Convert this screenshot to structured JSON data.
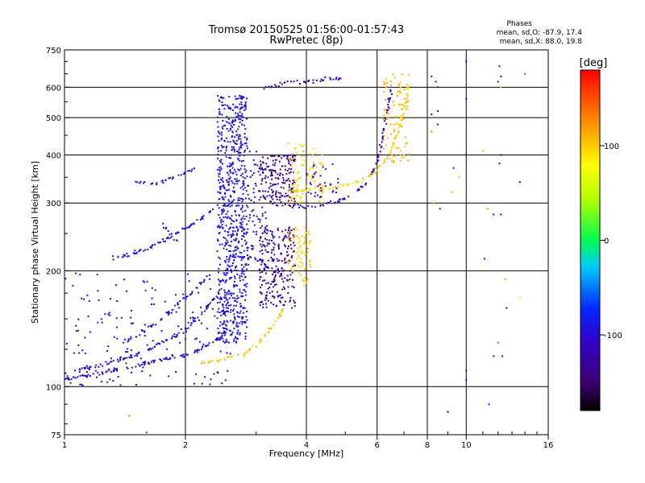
{
  "title": "Tromsø 20150525 01:56:00-01:57:43",
  "subtitle": "RwPretec (8p)",
  "stats": {
    "heading": "Phases",
    "line_o": "mean, sd,O: -87.9, 17.4",
    "line_x": "mean, sd,X:  88.0, 19.8"
  },
  "colorbar": {
    "label": "[deg]",
    "range": [
      -180,
      180
    ],
    "ticks": [
      100,
      0,
      -100
    ],
    "tick_labels": [
      "100",
      "0",
      "-100"
    ],
    "scale": "rainbow"
  },
  "chart_data": {
    "type": "scatter",
    "title": "Tromsø 20150525 01:56:00-01:57:43",
    "subtitle": "RwPretec (8p)",
    "xlabel": "Frequency [MHz]",
    "ylabel": "Stationary phase Virtual Height [km]",
    "xscale": "log",
    "yscale": "log",
    "xlim": [
      1,
      16
    ],
    "ylim": [
      75,
      750
    ],
    "xticks": [
      1,
      2,
      4,
      6,
      8,
      10,
      16
    ],
    "xtick_labels": [
      "1",
      "2",
      "4",
      "6",
      "8",
      "10",
      "16"
    ],
    "yticks": [
      75,
      100,
      200,
      300,
      400,
      500,
      600,
      750
    ],
    "ytick_labels": [
      "75",
      "100",
      "200",
      "300",
      "400",
      "500",
      "600",
      "750"
    ],
    "grid": true,
    "color_variable": "phase [deg]",
    "traces": [
      {
        "phase_mean": -105,
        "phase_sd": 12,
        "density": 5,
        "points": [
          [
            1.0,
            104
          ],
          [
            1.05,
            106
          ],
          [
            1.1,
            107
          ],
          [
            1.2,
            108
          ],
          [
            1.3,
            110
          ],
          [
            1.45,
            112
          ],
          [
            1.6,
            115
          ],
          [
            1.8,
            118
          ],
          [
            2.0,
            121
          ],
          [
            2.2,
            126
          ],
          [
            2.4,
            133
          ],
          [
            2.55,
            140
          ]
        ]
      },
      {
        "phase_mean": -102,
        "phase_sd": 12,
        "density": 5,
        "points": [
          [
            1.05,
            110
          ],
          [
            1.2,
            113
          ],
          [
            1.4,
            118
          ],
          [
            1.6,
            124
          ],
          [
            1.8,
            132
          ],
          [
            2.0,
            140
          ],
          [
            2.15,
            152
          ],
          [
            2.3,
            165
          ],
          [
            2.45,
            178
          ]
        ]
      },
      {
        "phase_mean": -100,
        "phase_sd": 14,
        "density": 4,
        "points": [
          [
            1.4,
            130
          ],
          [
            1.55,
            138
          ],
          [
            1.7,
            147
          ],
          [
            1.85,
            158
          ],
          [
            2.0,
            170
          ],
          [
            2.15,
            182
          ],
          [
            2.3,
            195
          ]
        ]
      },
      {
        "phase_mean": -95,
        "phase_sd": 12,
        "density": 5,
        "points": [
          [
            1.3,
            215
          ],
          [
            1.45,
            220
          ],
          [
            1.6,
            228
          ],
          [
            1.75,
            238
          ],
          [
            1.9,
            250
          ],
          [
            2.05,
            262
          ],
          [
            2.2,
            275
          ],
          [
            2.35,
            290
          ]
        ]
      },
      {
        "phase_mean": -98,
        "phase_sd": 10,
        "density": 4,
        "points": [
          [
            1.5,
            340
          ],
          [
            1.6,
            335
          ],
          [
            1.7,
            338
          ],
          [
            1.8,
            345
          ],
          [
            1.9,
            352
          ],
          [
            2.0,
            360
          ],
          [
            2.1,
            368
          ]
        ]
      },
      {
        "phase_mean": -92,
        "phase_sd": 14,
        "density": 3,
        "points": [
          [
            1.75,
            270
          ],
          [
            1.8,
            255
          ],
          [
            1.85,
            245
          ],
          [
            1.9,
            240
          ]
        ]
      },
      {
        "phase_mean": -110,
        "phase_sd": 14,
        "density": 4,
        "points": [
          [
            3.3,
            300
          ],
          [
            3.5,
            296
          ],
          [
            3.8,
            294
          ],
          [
            4.1,
            294
          ],
          [
            4.4,
            297
          ],
          [
            4.8,
            303
          ],
          [
            5.2,
            315
          ],
          [
            5.6,
            335
          ],
          [
            5.9,
            365
          ],
          [
            6.1,
            410
          ],
          [
            6.25,
            470
          ],
          [
            6.4,
            540
          ],
          [
            6.55,
            600
          ]
        ]
      },
      {
        "phase_mean": -118,
        "phase_sd": 10,
        "density": 4,
        "points": [
          [
            3.1,
            590
          ],
          [
            3.4,
            610
          ],
          [
            3.7,
            620
          ],
          [
            4.0,
            618
          ],
          [
            4.3,
            625
          ],
          [
            4.6,
            632
          ],
          [
            5.0,
            636
          ]
        ]
      },
      {
        "phase_mean": 95,
        "phase_sd": 15,
        "density": 4,
        "points": [
          [
            3.6,
            325
          ],
          [
            3.9,
            322
          ],
          [
            4.2,
            325
          ],
          [
            4.6,
            328
          ],
          [
            5.0,
            333
          ],
          [
            5.5,
            343
          ],
          [
            5.9,
            360
          ],
          [
            6.3,
            390
          ],
          [
            6.6,
            430
          ],
          [
            6.85,
            480
          ],
          [
            7.05,
            540
          ],
          [
            7.2,
            610
          ]
        ]
      },
      {
        "phase_mean": 105,
        "phase_sd": 15,
        "density": 4,
        "points": [
          [
            2.2,
            115
          ],
          [
            2.5,
            118
          ],
          [
            2.8,
            122
          ],
          [
            3.0,
            128
          ],
          [
            3.2,
            138
          ],
          [
            3.4,
            150
          ],
          [
            3.55,
            165
          ]
        ]
      }
    ],
    "clusters": [
      {
        "x_range": [
          2.4,
          2.85
        ],
        "y_range": [
          130,
          570
        ],
        "phase_mean": -90,
        "phase_sd": 14,
        "count": 760
      },
      {
        "x_range": [
          2.85,
          3.2
        ],
        "y_range": [
          200,
          420
        ],
        "phase_mean": -100,
        "phase_sd": 14,
        "count": 90
      },
      {
        "x_range": [
          3.05,
          3.75
        ],
        "y_range": [
          160,
          260
        ],
        "phase_mean": -130,
        "phase_sd": 12,
        "count": 230
      },
      {
        "x_range": [
          3.05,
          3.75
        ],
        "y_range": [
          300,
          400
        ],
        "phase_mean": -135,
        "phase_sd": 12,
        "count": 170
      },
      {
        "x_range": [
          3.6,
          4.1
        ],
        "y_range": [
          180,
          260
        ],
        "phase_mean": 100,
        "phase_sd": 14,
        "count": 80
      },
      {
        "x_range": [
          3.6,
          4.4
        ],
        "y_range": [
          300,
          430
        ],
        "phase_mean": 98,
        "phase_sd": 14,
        "count": 90
      },
      {
        "x_range": [
          4.0,
          4.8
        ],
        "y_range": [
          310,
          380
        ],
        "phase_mean": -108,
        "phase_sd": 16,
        "count": 35
      },
      {
        "x_range": [
          6.2,
          7.2
        ],
        "y_range": [
          380,
          650
        ],
        "phase_mean": 110,
        "phase_sd": 15,
        "count": 90
      },
      {
        "x_range": [
          1.0,
          2.6
        ],
        "y_range": [
          100,
          200
        ],
        "phase_mean": -100,
        "phase_sd": 14,
        "count": 160
      }
    ],
    "scatter_points": [
      [
        10.0,
        700,
        -120
      ],
      [
        10.0,
        560,
        -115
      ],
      [
        10.0,
        400,
        -110
      ],
      [
        10.0,
        110,
        -120
      ],
      [
        10.0,
        104,
        -110
      ],
      [
        9.6,
        350,
        110
      ],
      [
        9.3,
        370,
        -100
      ],
      [
        8.5,
        600,
        -110
      ],
      [
        8.5,
        520,
        -110
      ],
      [
        8.5,
        480,
        -105
      ],
      [
        8.4,
        620,
        -110
      ],
      [
        8.2,
        510,
        -100
      ],
      [
        12.1,
        680,
        -110
      ],
      [
        12.2,
        640,
        -120
      ],
      [
        12.0,
        620,
        -95
      ],
      [
        12.2,
        600,
        100
      ],
      [
        14.0,
        650,
        160
      ],
      [
        12.2,
        400,
        -110
      ],
      [
        12.1,
        380,
        -105
      ],
      [
        13.6,
        340,
        -120
      ],
      [
        11.7,
        280,
        -110
      ],
      [
        11.3,
        290,
        120
      ],
      [
        11.1,
        215,
        -110
      ],
      [
        12.2,
        280,
        -100
      ],
      [
        12.3,
        120,
        -110
      ],
      [
        12.0,
        130,
        150
      ],
      [
        13.6,
        170,
        90
      ],
      [
        12.5,
        190,
        120
      ],
      [
        12.6,
        160,
        -100
      ],
      [
        11.7,
        120,
        -110
      ],
      [
        11.4,
        90,
        -90
      ],
      [
        9.0,
        86,
        -160
      ],
      [
        1.45,
        84,
        140
      ],
      [
        1.6,
        76,
        -60
      ],
      [
        8.2,
        640,
        -120
      ],
      [
        8.2,
        460,
        140
      ],
      [
        8.3,
        300,
        120
      ],
      [
        8.6,
        290,
        -100
      ],
      [
        9.2,
        320,
        110
      ],
      [
        11.0,
        410,
        110
      ]
    ]
  }
}
